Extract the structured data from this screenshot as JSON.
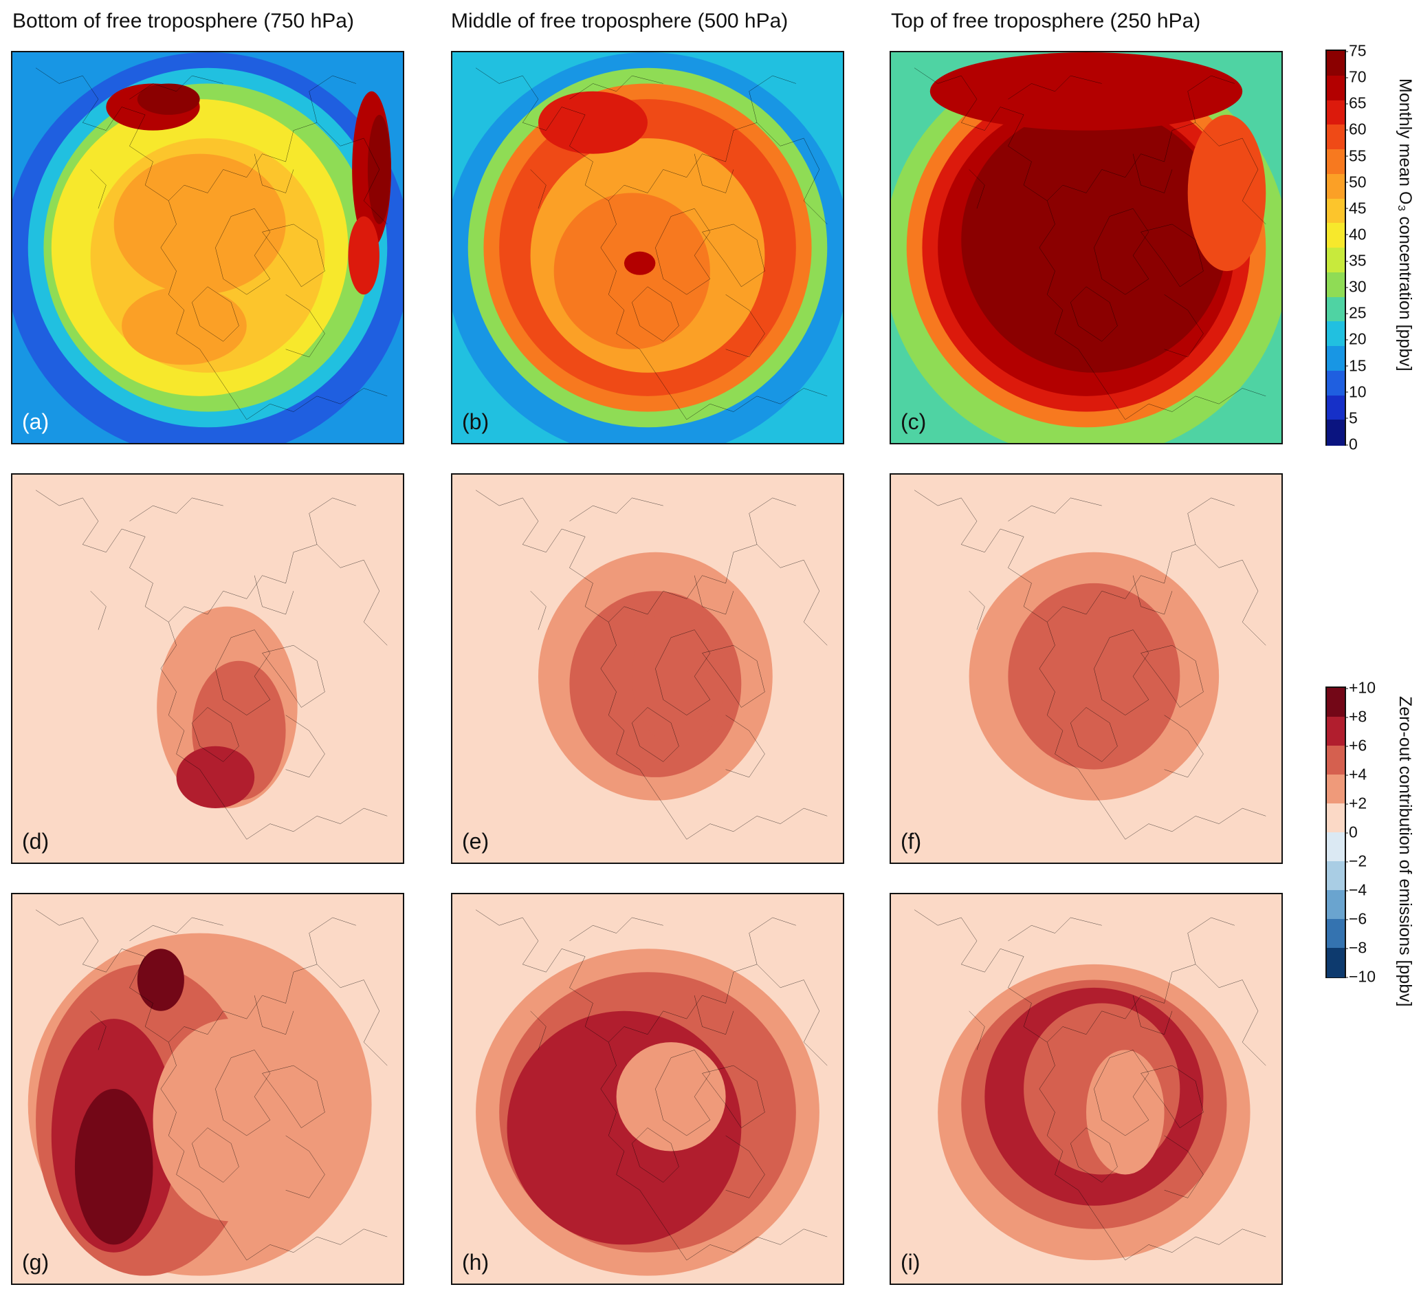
{
  "columns": [
    {
      "title": "Bottom of free troposphere (750 hPa)"
    },
    {
      "title": "Middle of free troposphere (500 hPa)"
    },
    {
      "title": "Top of free troposphere (250 hPa)"
    }
  ],
  "panels": [
    {
      "label": "(a)",
      "field": "o3_750"
    },
    {
      "label": "(b)",
      "field": "o3_500"
    },
    {
      "label": "(c)",
      "field": "o3_250"
    },
    {
      "label": "(d)",
      "field": "contrib_d"
    },
    {
      "label": "(e)",
      "field": "contrib_e"
    },
    {
      "label": "(f)",
      "field": "contrib_f"
    },
    {
      "label": "(g)",
      "field": "contrib_g"
    },
    {
      "label": "(h)",
      "field": "contrib_h"
    },
    {
      "label": "(i)",
      "field": "contrib_i"
    }
  ],
  "colorbar_concentration": {
    "title": "Monthly mean O₃ concentration [ppbv]",
    "ticks": [
      "75",
      "70",
      "65",
      "60",
      "55",
      "50",
      "45",
      "40",
      "35",
      "30",
      "25",
      "20",
      "15",
      "10",
      "5",
      "0"
    ],
    "colors": [
      "#8b0000",
      "#b30000",
      "#dc1a0c",
      "#ef4a16",
      "#f7791f",
      "#fba026",
      "#fcc52c",
      "#f7e82c",
      "#c8ea3c",
      "#8fdc55",
      "#4fd3a3",
      "#21c0e0",
      "#1896e4",
      "#1f5fe0",
      "#1630c8",
      "#0a1480"
    ]
  },
  "colorbar_contribution": {
    "title": "Zero-out contribution of emissions [ppbv]",
    "ticks": [
      "+10",
      "+8",
      "+6",
      "+4",
      "+2",
      "0",
      "−2",
      "−4",
      "−6",
      "−8",
      "−10"
    ],
    "colors": [
      "#730717",
      "#b11e2e",
      "#d5604f",
      "#ef9a7a",
      "#fbd9c6",
      "#dbe9f3",
      "#a9cde4",
      "#6aa4cf",
      "#3473b0",
      "#0d3a6e"
    ]
  },
  "map_colors": {
    "coastline": "#000000"
  }
}
